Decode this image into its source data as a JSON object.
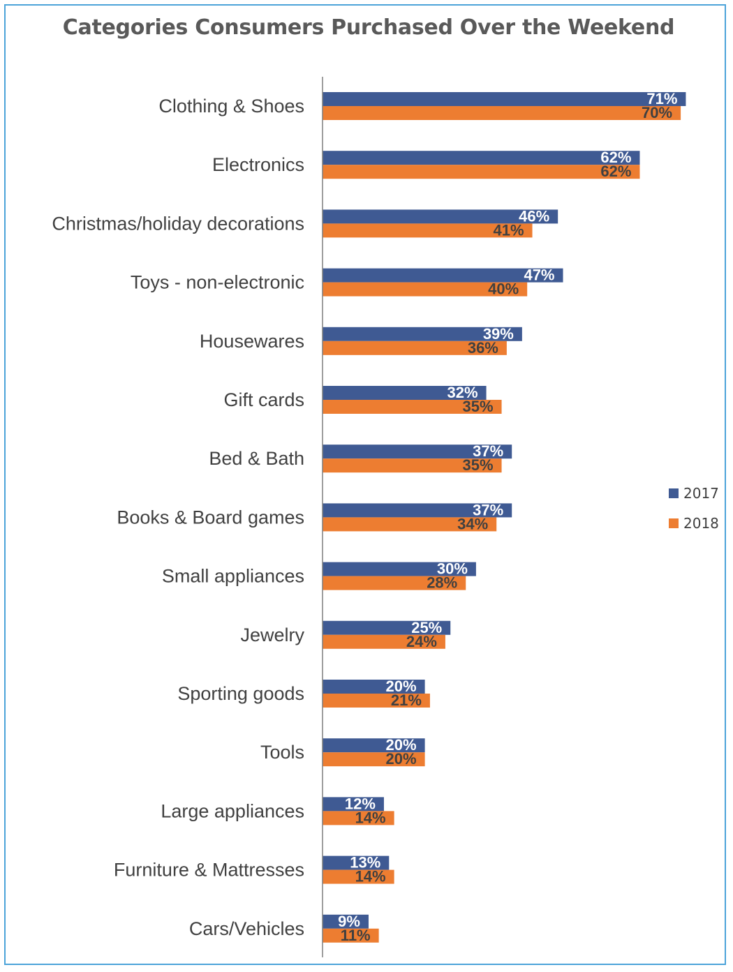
{
  "chart_data": {
    "type": "bar",
    "orientation": "horizontal",
    "title": "Categories Consumers Purchased Over the Weekend",
    "categories": [
      "Clothing & Shoes",
      "Electronics",
      "Christmas/holiday decorations",
      "Toys - non-electronic",
      "Housewares",
      "Gift cards",
      "Bed & Bath",
      "Books & Board games",
      "Small appliances",
      "Jewelry",
      "Sporting goods",
      "Tools",
      "Large appliances",
      "Furniture & Mattresses",
      "Cars/Vehicles"
    ],
    "series": [
      {
        "name": "2017",
        "color": "#3f5a93",
        "values": [
          71,
          62,
          46,
          47,
          39,
          32,
          37,
          37,
          30,
          25,
          20,
          20,
          12,
          13,
          9
        ],
        "labels": [
          "71%",
          "62%",
          "46%",
          "47%",
          "39%",
          "32%",
          "37%",
          "37%",
          "30%",
          "25%",
          "20%",
          "20%",
          "12%",
          "13%",
          "9%"
        ]
      },
      {
        "name": "2018",
        "color": "#ed7d31",
        "values": [
          70,
          62,
          41,
          40,
          36,
          35,
          35,
          34,
          28,
          24,
          21,
          20,
          14,
          14,
          11
        ],
        "labels": [
          "70%",
          "62%",
          "41%",
          "40%",
          "36%",
          "35%",
          "35%",
          "34%",
          "28%",
          "24%",
          "21%",
          "20%",
          "14%",
          "14%",
          "11%"
        ]
      }
    ],
    "xlim": [
      0,
      100
    ],
    "grid": false,
    "legend_position": "right"
  }
}
